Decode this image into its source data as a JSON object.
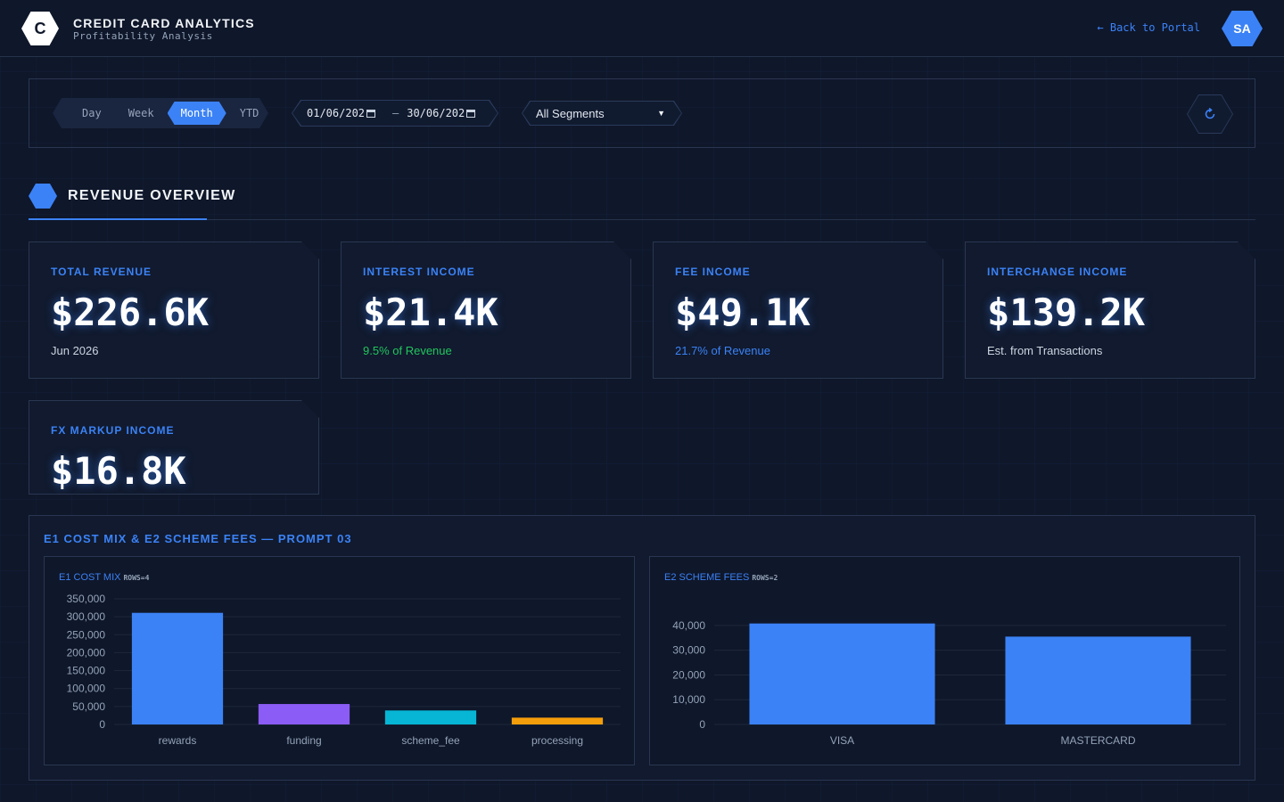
{
  "header": {
    "logo_letter": "C",
    "title": "CREDIT CARD ANALYTICS",
    "subtitle": "Profitability Analysis",
    "back_label": "← Back to Portal",
    "avatar_initials": "SA"
  },
  "filters": {
    "periods": [
      "Day",
      "Week",
      "Month",
      "YTD"
    ],
    "active_period": "Month",
    "date_from": "01/06/202",
    "date_to": "30/06/202",
    "date_separator": "–",
    "segment": "All Segments"
  },
  "section": {
    "title": "REVENUE OVERVIEW"
  },
  "kpis": [
    {
      "label": "TOTAL REVENUE",
      "value": "$226.6K",
      "sub": "Jun 2026",
      "sub_color": "#cbd5e1"
    },
    {
      "label": "INTEREST INCOME",
      "value": "$21.4K",
      "sub": "9.5% of Revenue",
      "sub_color": "#22c55e"
    },
    {
      "label": "FEE INCOME",
      "value": "$49.1K",
      "sub": "21.7% of Revenue",
      "sub_color": "#3b82f6"
    },
    {
      "label": "INTERCHANGE INCOME",
      "value": "$139.2K",
      "sub": "Est. from Transactions",
      "sub_color": "#cbd5e1"
    },
    {
      "label": "FX MARKUP INCOME",
      "value": "$16.8K",
      "sub": "",
      "sub_color": "#cbd5e1"
    }
  ],
  "panel": {
    "title": "E1 COST MIX & E2 SCHEME FEES — PROMPT 03",
    "e1_title": "E1 COST MIX",
    "e1_rows": "ROWS=4",
    "e2_title": "E2 SCHEME FEES",
    "e2_rows": "ROWS=2"
  },
  "colors": {
    "accent": "#3b82f6",
    "background": "#0f172a",
    "positive": "#22c55e"
  },
  "chart_data": [
    {
      "type": "bar",
      "title": "E1 COST MIX",
      "categories": [
        "rewards",
        "funding",
        "scheme_fee",
        "processing"
      ],
      "values": [
        311000,
        57000,
        39000,
        19000
      ],
      "colors": [
        "#3b82f6",
        "#8b5cf6",
        "#06b6d4",
        "#f59e0b"
      ],
      "ylim": [
        0,
        350000
      ],
      "yticks": [
        "350,000",
        "300,000",
        "250,000",
        "200,000",
        "150,000",
        "100,000",
        "50,000",
        "0"
      ],
      "grid": true
    },
    {
      "type": "bar",
      "title": "E2 SCHEME FEES",
      "categories": [
        "VISA",
        "MASTERCARD"
      ],
      "values": [
        40800,
        35500
      ],
      "colors": [
        "#3b82f6",
        "#3b82f6"
      ],
      "ylim": [
        0,
        45000
      ],
      "yticks": [
        "40,000",
        "30,000",
        "20,000",
        "10,000",
        "0"
      ],
      "grid": true
    }
  ]
}
